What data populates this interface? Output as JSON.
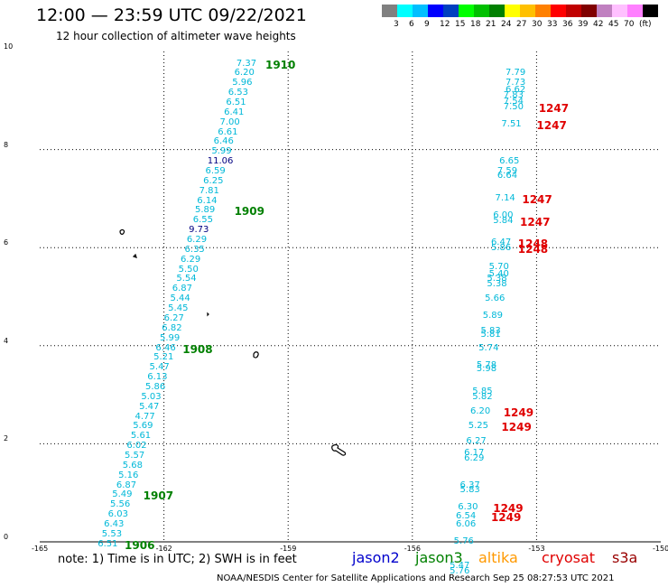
{
  "title": "12:00 — 23:59 UTC 09/22/2021",
  "subtitle": "12 hour collection of altimeter wave heights",
  "colorbar": {
    "colors": [
      "#808080",
      "#00ffff",
      "#00bfff",
      "#0000ff",
      "#0040c0",
      "#00ff00",
      "#00c000",
      "#008000",
      "#ffff00",
      "#ffc000",
      "#ff8000",
      "#ff0000",
      "#c00000",
      "#800000",
      "#c080c0",
      "#ffc0ff",
      "#ff80ff",
      "#000000"
    ],
    "labels": [
      "3",
      "6",
      "9",
      "12",
      "15",
      "18",
      "21",
      "24",
      "27",
      "30",
      "33",
      "36",
      "39",
      "42",
      "45",
      "70",
      "(ft)"
    ]
  },
  "axes": {
    "x_ticks": [
      "-165",
      "-162",
      "-159",
      "-156",
      "-153",
      "-150"
    ],
    "y_ticks": [
      "0",
      "2",
      "4",
      "6",
      "8",
      "10"
    ],
    "xlim": [
      -165,
      -150
    ],
    "ylim": [
      0,
      10
    ]
  },
  "colors": {
    "jason2": "#0000cc",
    "jason3": "#008000",
    "altika": "#ff9900",
    "cryosat": "#e00000",
    "s3a": "#990000",
    "cyan": "#00b8d8",
    "navy": "#000080"
  },
  "track_west": [
    {
      "v": "7.37",
      "lon": -160.25,
      "lat": 9.75,
      "c": "cyan"
    },
    {
      "v": "6.20",
      "lon": -160.3,
      "lat": 9.55,
      "c": "cyan"
    },
    {
      "v": "5.96",
      "lon": -160.35,
      "lat": 9.35,
      "c": "cyan"
    },
    {
      "v": "6.53",
      "lon": -160.45,
      "lat": 9.15,
      "c": "cyan"
    },
    {
      "v": "6.51",
      "lon": -160.5,
      "lat": 8.95,
      "c": "cyan"
    },
    {
      "v": "6.41",
      "lon": -160.55,
      "lat": 8.75,
      "c": "cyan"
    },
    {
      "v": "7.00",
      "lon": -160.65,
      "lat": 8.55,
      "c": "cyan"
    },
    {
      "v": "6.61",
      "lon": -160.7,
      "lat": 8.35,
      "c": "cyan"
    },
    {
      "v": "6.46",
      "lon": -160.8,
      "lat": 8.15,
      "c": "cyan"
    },
    {
      "v": "5.99",
      "lon": -160.85,
      "lat": 7.95,
      "c": "cyan"
    },
    {
      "v": "11.06",
      "lon": -160.95,
      "lat": 7.75,
      "c": "navy"
    },
    {
      "v": "6.59",
      "lon": -161.0,
      "lat": 7.55,
      "c": "cyan"
    },
    {
      "v": "6.25",
      "lon": -161.05,
      "lat": 7.35,
      "c": "cyan"
    },
    {
      "v": "7.81",
      "lon": -161.15,
      "lat": 7.15,
      "c": "cyan"
    },
    {
      "v": "6.14",
      "lon": -161.2,
      "lat": 6.95,
      "c": "cyan"
    },
    {
      "v": "5.89",
      "lon": -161.25,
      "lat": 6.75,
      "c": "cyan"
    },
    {
      "v": "6.55",
      "lon": -161.3,
      "lat": 6.55,
      "c": "cyan"
    },
    {
      "v": "9.73",
      "lon": -161.4,
      "lat": 6.35,
      "c": "navy"
    },
    {
      "v": "6.29",
      "lon": -161.45,
      "lat": 6.15,
      "c": "cyan"
    },
    {
      "v": "6.35",
      "lon": -161.5,
      "lat": 5.95,
      "c": "cyan"
    },
    {
      "v": "6.29",
      "lon": -161.6,
      "lat": 5.75,
      "c": "cyan"
    },
    {
      "v": "5.50",
      "lon": -161.65,
      "lat": 5.55,
      "c": "cyan"
    },
    {
      "v": "5.54",
      "lon": -161.7,
      "lat": 5.35,
      "c": "cyan"
    },
    {
      "v": "6.87",
      "lon": -161.8,
      "lat": 5.15,
      "c": "cyan"
    },
    {
      "v": "5.44",
      "lon": -161.85,
      "lat": 4.95,
      "c": "cyan"
    },
    {
      "v": "5.45",
      "lon": -161.9,
      "lat": 4.75,
      "c": "cyan"
    },
    {
      "v": "6.27",
      "lon": -162.0,
      "lat": 4.55,
      "c": "cyan"
    },
    {
      "v": "6.82",
      "lon": -162.05,
      "lat": 4.35,
      "c": "cyan"
    },
    {
      "v": "5.99",
      "lon": -162.1,
      "lat": 4.15,
      "c": "cyan"
    },
    {
      "v": "6.46",
      "lon": -162.2,
      "lat": 3.95,
      "c": "cyan"
    },
    {
      "v": "5.21",
      "lon": -162.25,
      "lat": 3.75,
      "c": "cyan"
    },
    {
      "v": "5.47",
      "lon": -162.35,
      "lat": 3.55,
      "c": "cyan"
    },
    {
      "v": "6.13",
      "lon": -162.4,
      "lat": 3.35,
      "c": "cyan"
    },
    {
      "v": "5.86",
      "lon": -162.45,
      "lat": 3.15,
      "c": "cyan"
    },
    {
      "v": "5.03",
      "lon": -162.55,
      "lat": 2.95,
      "c": "cyan"
    },
    {
      "v": "5.47",
      "lon": -162.6,
      "lat": 2.75,
      "c": "cyan"
    },
    {
      "v": "4.77",
      "lon": -162.7,
      "lat": 2.55,
      "c": "cyan"
    },
    {
      "v": "5.69",
      "lon": -162.75,
      "lat": 2.35,
      "c": "cyan"
    },
    {
      "v": "5.61",
      "lon": -162.8,
      "lat": 2.15,
      "c": "cyan"
    },
    {
      "v": "6.02",
      "lon": -162.9,
      "lat": 1.95,
      "c": "cyan"
    },
    {
      "v": "5.57",
      "lon": -162.95,
      "lat": 1.75,
      "c": "cyan"
    },
    {
      "v": "5.68",
      "lon": -163.0,
      "lat": 1.55,
      "c": "cyan"
    },
    {
      "v": "5.16",
      "lon": -163.1,
      "lat": 1.35,
      "c": "cyan"
    },
    {
      "v": "6.87",
      "lon": -163.15,
      "lat": 1.15,
      "c": "cyan"
    },
    {
      "v": "5.49",
      "lon": -163.25,
      "lat": 0.95,
      "c": "cyan"
    },
    {
      "v": "5.56",
      "lon": -163.3,
      "lat": 0.75,
      "c": "cyan"
    },
    {
      "v": "6.03",
      "lon": -163.35,
      "lat": 0.55,
      "c": "cyan"
    },
    {
      "v": "6.43",
      "lon": -163.45,
      "lat": 0.35,
      "c": "cyan"
    },
    {
      "v": "5.53",
      "lon": -163.5,
      "lat": 0.15,
      "c": "cyan"
    },
    {
      "v": "6.51",
      "lon": -163.6,
      "lat": -0.05,
      "c": "cyan"
    }
  ],
  "track_east": [
    {
      "v": "7.79",
      "lon": -153.75,
      "lat": 9.55,
      "c": "cyan"
    },
    {
      "v": "7.73",
      "lon": -153.75,
      "lat": 9.35,
      "c": "cyan"
    },
    {
      "v": "6.62",
      "lon": -153.75,
      "lat": 9.2,
      "c": "cyan"
    },
    {
      "v": "7.83",
      "lon": -153.8,
      "lat": 9.1,
      "c": "cyan"
    },
    {
      "v": "7.54",
      "lon": -153.8,
      "lat": 8.97,
      "c": "cyan"
    },
    {
      "v": "7.50",
      "lon": -153.8,
      "lat": 8.85,
      "c": "cyan"
    },
    {
      "v": "7.51",
      "lon": -153.85,
      "lat": 8.5,
      "c": "cyan"
    },
    {
      "v": "6.65",
      "lon": -153.9,
      "lat": 7.75,
      "c": "cyan"
    },
    {
      "v": "7.59",
      "lon": -153.95,
      "lat": 7.55,
      "c": "cyan"
    },
    {
      "v": "6.64",
      "lon": -153.95,
      "lat": 7.45,
      "c": "cyan"
    },
    {
      "v": "7.14",
      "lon": -154.0,
      "lat": 7.0,
      "c": "cyan"
    },
    {
      "v": "6.00",
      "lon": -154.05,
      "lat": 6.65,
      "c": "cyan"
    },
    {
      "v": "5.84",
      "lon": -154.05,
      "lat": 6.53,
      "c": "cyan"
    },
    {
      "v": "6.47",
      "lon": -154.1,
      "lat": 6.1,
      "c": "cyan"
    },
    {
      "v": "5.86",
      "lon": -154.1,
      "lat": 5.98,
      "c": "cyan"
    },
    {
      "v": "5.70",
      "lon": -154.15,
      "lat": 5.6,
      "c": "cyan"
    },
    {
      "v": "5.40",
      "lon": -154.15,
      "lat": 5.45,
      "c": "cyan"
    },
    {
      "v": "5.38",
      "lon": -154.2,
      "lat": 5.35,
      "c": "cyan"
    },
    {
      "v": "5.38",
      "lon": -154.2,
      "lat": 5.25,
      "c": "cyan"
    },
    {
      "v": "5.66",
      "lon": -154.25,
      "lat": 4.95,
      "c": "cyan"
    },
    {
      "v": "5.89",
      "lon": -154.3,
      "lat": 4.6,
      "c": "cyan"
    },
    {
      "v": "5.83",
      "lon": -154.35,
      "lat": 4.3,
      "c": "cyan"
    },
    {
      "v": "5.81",
      "lon": -154.35,
      "lat": 4.22,
      "c": "cyan"
    },
    {
      "v": "5.74",
      "lon": -154.4,
      "lat": 3.95,
      "c": "cyan"
    },
    {
      "v": "5.78",
      "lon": -154.45,
      "lat": 3.6,
      "c": "cyan"
    },
    {
      "v": "5.98",
      "lon": -154.45,
      "lat": 3.52,
      "c": "cyan"
    },
    {
      "v": "5.85",
      "lon": -154.55,
      "lat": 3.05,
      "c": "cyan"
    },
    {
      "v": "5.82",
      "lon": -154.55,
      "lat": 2.95,
      "c": "cyan"
    },
    {
      "v": "6.20",
      "lon": -154.6,
      "lat": 2.65,
      "c": "cyan"
    },
    {
      "v": "5.25",
      "lon": -154.65,
      "lat": 2.35,
      "c": "cyan"
    },
    {
      "v": "6.27",
      "lon": -154.7,
      "lat": 2.05,
      "c": "cyan"
    },
    {
      "v": "6.17",
      "lon": -154.75,
      "lat": 1.8,
      "c": "cyan"
    },
    {
      "v": "6.29",
      "lon": -154.75,
      "lat": 1.7,
      "c": "cyan"
    },
    {
      "v": "6.37",
      "lon": -154.85,
      "lat": 1.15,
      "c": "cyan"
    },
    {
      "v": "5.83",
      "lon": -154.85,
      "lat": 1.05,
      "c": "cyan"
    },
    {
      "v": "6.30",
      "lon": -154.9,
      "lat": 0.7,
      "c": "cyan"
    },
    {
      "v": "6.54",
      "lon": -154.95,
      "lat": 0.52,
      "c": "cyan"
    },
    {
      "v": "6.06",
      "lon": -154.95,
      "lat": 0.35,
      "c": "cyan"
    },
    {
      "v": "5.76",
      "lon": -155.0,
      "lat": 0.0,
      "c": "cyan"
    },
    {
      "v": "5.47",
      "lon": -155.1,
      "lat": -0.5,
      "c": "cyan"
    },
    {
      "v": "5.76",
      "lon": -155.1,
      "lat": -0.6,
      "c": "cyan"
    }
  ],
  "pass_times": [
    {
      "t": "1910",
      "lon": -159.55,
      "lat": 9.75,
      "c": "jason3"
    },
    {
      "t": "1909",
      "lon": -160.3,
      "lat": 6.75,
      "c": "jason3"
    },
    {
      "t": "1908",
      "lon": -161.55,
      "lat": 3.95,
      "c": "jason3"
    },
    {
      "t": "1907",
      "lon": -162.5,
      "lat": 0.95,
      "c": "jason3"
    },
    {
      "t": "1906",
      "lon": -162.95,
      "lat": -0.05,
      "c": "jason3"
    },
    {
      "t": "1247",
      "lon": -152.95,
      "lat": 8.85,
      "c": "cryosat"
    },
    {
      "t": "1247",
      "lon": -153.0,
      "lat": 8.5,
      "c": "cryosat"
    },
    {
      "t": "1247",
      "lon": -153.35,
      "lat": 7.0,
      "c": "cryosat"
    },
    {
      "t": "1247",
      "lon": -153.4,
      "lat": 6.53,
      "c": "cryosat"
    },
    {
      "t": "1248",
      "lon": -153.45,
      "lat": 6.1,
      "c": "cryosat"
    },
    {
      "t": "1248",
      "lon": -153.45,
      "lat": 5.98,
      "c": "cryosat"
    },
    {
      "t": "1249",
      "lon": -153.8,
      "lat": 2.65,
      "c": "cryosat"
    },
    {
      "t": "1249",
      "lon": -153.85,
      "lat": 2.35,
      "c": "cryosat"
    },
    {
      "t": "1249",
      "lon": -154.05,
      "lat": 0.7,
      "c": "cryosat"
    },
    {
      "t": "1249",
      "lon": -154.1,
      "lat": 0.52,
      "c": "cryosat"
    }
  ],
  "note": "note:  1) Time is in UTC; 2) SWH is in feet",
  "legend": [
    {
      "name": "jason2",
      "c": "jason2"
    },
    {
      "name": "jason3",
      "c": "jason3"
    },
    {
      "name": "altika",
      "c": "altika"
    },
    {
      "name": "cryosat",
      "c": "cryosat"
    },
    {
      "name": "s3a",
      "c": "s3a"
    }
  ],
  "footer": "NOAA/NESDIS Center for Satellite Applications and Research    Sep 25 08:27:53 UTC 2021"
}
